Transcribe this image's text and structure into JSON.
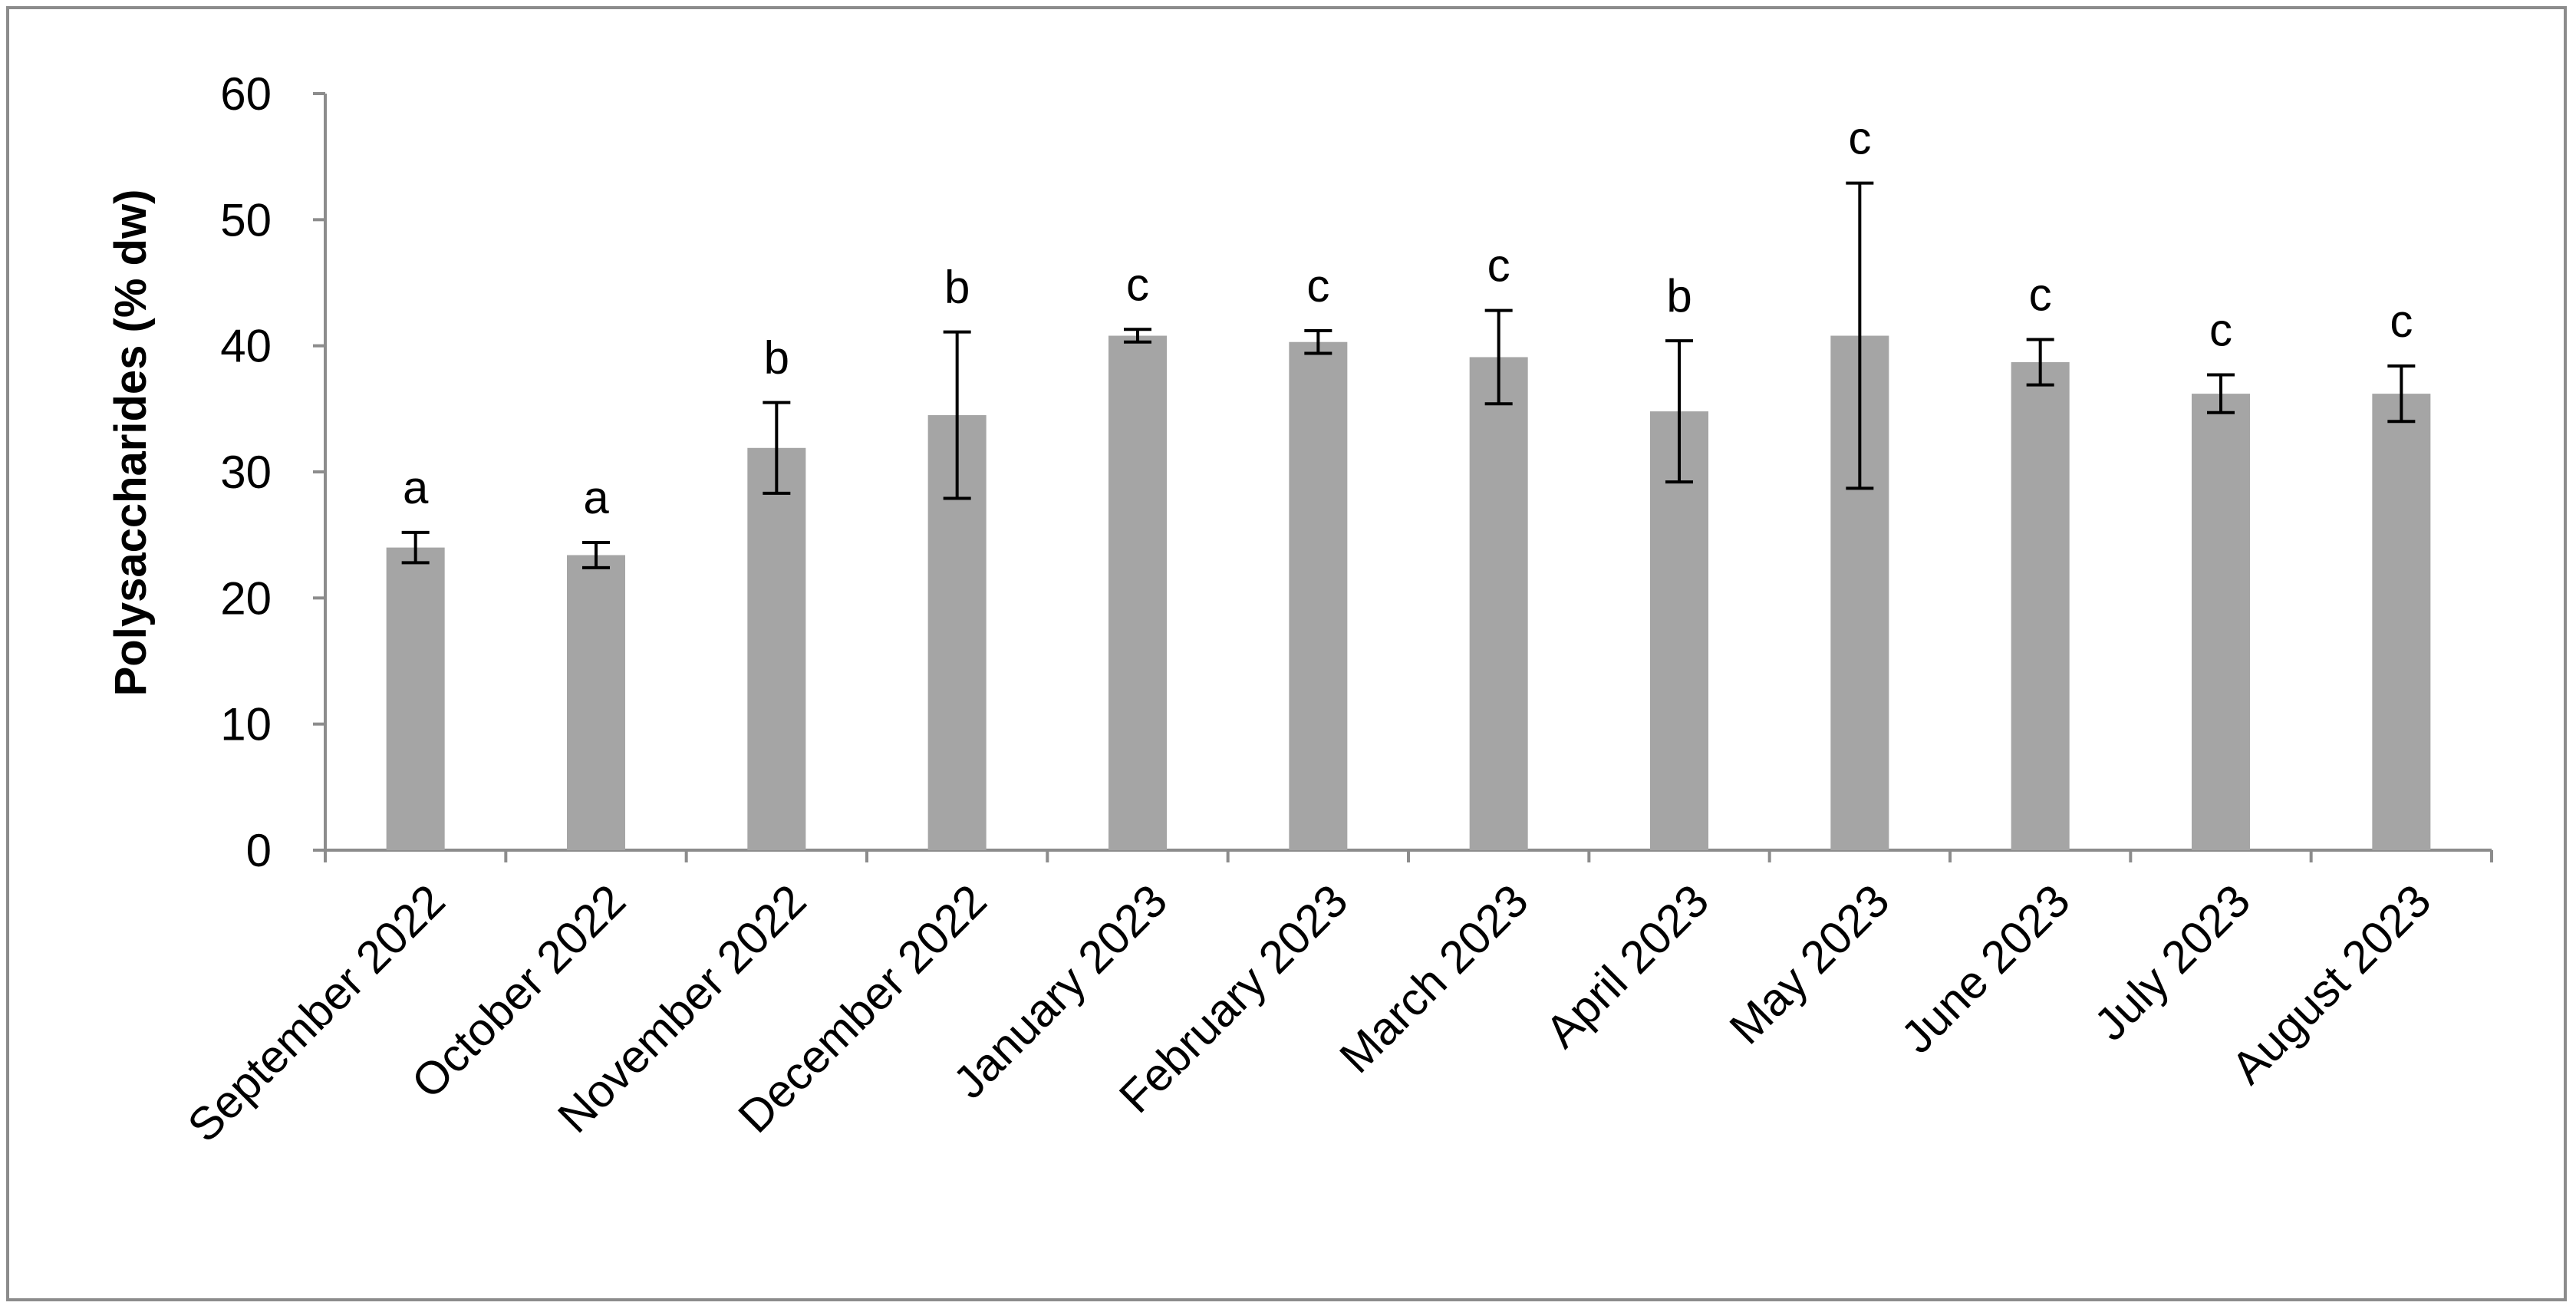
{
  "chart_data": {
    "type": "bar",
    "title": "",
    "xlabel": "",
    "ylabel": "Polysaccharides  (% dw)",
    "ylim": [
      0,
      60
    ],
    "yticks": [
      0,
      10,
      20,
      30,
      40,
      50,
      60
    ],
    "ytick_labels": [
      "0",
      "10",
      "20",
      "30",
      "40",
      "50",
      "60"
    ],
    "grid": false,
    "legend": "none",
    "bar_color": "#a5a5a5",
    "categories": [
      "September 2022",
      "October 2022",
      "November 2022",
      "December 2022",
      "January 2023",
      "February 2023",
      "March 2023",
      "April 2023",
      "May 2023",
      "June 2023",
      "July 2023",
      "August 2023"
    ],
    "values": [
      24.0,
      23.4,
      31.9,
      34.5,
      40.8,
      40.3,
      39.1,
      34.8,
      40.8,
      38.7,
      36.2,
      36.2
    ],
    "errors": [
      1.2,
      1.0,
      3.6,
      6.6,
      0.5,
      0.9,
      3.7,
      5.6,
      12.1,
      1.8,
      1.5,
      2.2
    ],
    "significance": [
      "a",
      "a",
      "b",
      "b",
      "c",
      "c",
      "c",
      "b",
      "c",
      "c",
      "c",
      "c"
    ]
  }
}
